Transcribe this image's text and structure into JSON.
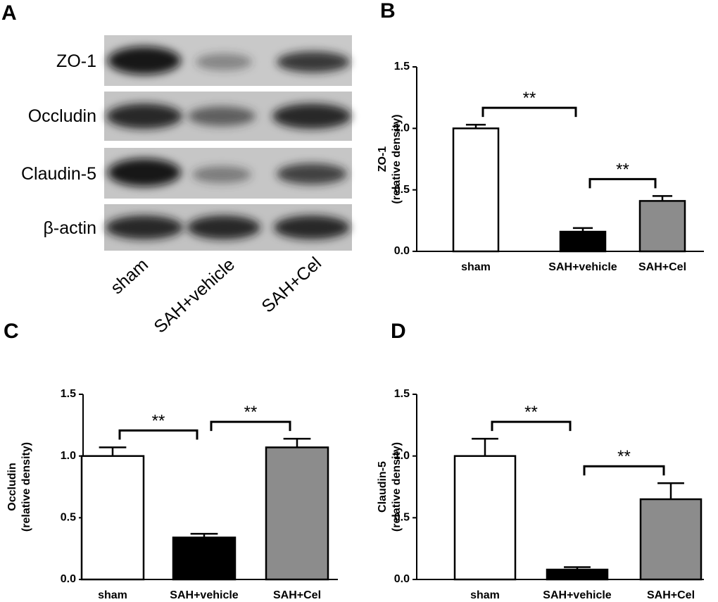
{
  "blot": {
    "panel": "A",
    "proteins": [
      "ZO-1",
      "Occludin",
      "Claudin-5",
      "β-actin"
    ],
    "groups": [
      "sham",
      "SAH+vehicle",
      "SAH+Cel"
    ]
  },
  "chart_data": [
    {
      "type": "bar",
      "panel": "B",
      "ylabel": [
        "ZO-1",
        "(relative density)"
      ],
      "categories": [
        "sham",
        "SAH+vehicle",
        "SAH+Cel"
      ],
      "values": [
        1.0,
        0.16,
        0.41
      ],
      "errors": [
        0.03,
        0.03,
        0.04
      ],
      "colors": [
        "#ffffff",
        "#000000",
        "#8c8c8c"
      ],
      "ylim": [
        0,
        1.5
      ],
      "yticks": [
        {
          "value": 0,
          "label": "0.0"
        },
        0.5,
        {
          "value": 1,
          "label": "1.0"
        },
        1.5
      ],
      "annotations": [
        {
          "text": "**",
          "groups": [
            "sham",
            "SAH+vehicle"
          ]
        },
        {
          "text": "**",
          "groups": [
            "SAH+vehicle",
            "SAH+Cel"
          ]
        }
      ]
    },
    {
      "type": "bar",
      "panel": "C",
      "ylabel": [
        "Occludin",
        "(relative density)"
      ],
      "categories": [
        "sham",
        "SAH+vehicle",
        "SAH+Cel"
      ],
      "values": [
        1.0,
        0.34,
        1.07
      ],
      "errors": [
        0.07,
        0.03,
        0.07
      ],
      "colors": [
        "#ffffff",
        "#000000",
        "#8c8c8c"
      ],
      "ylim": [
        0,
        1.5
      ],
      "yticks": [
        {
          "value": 0,
          "label": "0.0"
        },
        0.5,
        {
          "value": 1,
          "label": "1.0"
        },
        1.5
      ],
      "annotations": [
        {
          "text": "**",
          "groups": [
            "sham",
            "SAH+vehicle"
          ]
        },
        {
          "text": "**",
          "groups": [
            "SAH+vehicle",
            "SAH+Cel"
          ]
        }
      ]
    },
    {
      "type": "bar",
      "panel": "D",
      "ylabel": [
        "Claudin-5",
        "(relative density)"
      ],
      "categories": [
        "sham",
        "SAH+vehicle",
        "SAH+Cel"
      ],
      "values": [
        1.0,
        0.08,
        0.65
      ],
      "errors": [
        0.14,
        0.02,
        0.13
      ],
      "colors": [
        "#ffffff",
        "#000000",
        "#8c8c8c"
      ],
      "ylim": [
        0,
        1.5
      ],
      "yticks": [
        {
          "value": 0,
          "label": "0.0"
        },
        0.5,
        {
          "value": 1,
          "label": "1.0"
        },
        1.5
      ],
      "annotations": [
        {
          "text": "**",
          "groups": [
            "sham",
            "SAH+vehicle"
          ]
        },
        {
          "text": "**",
          "groups": [
            "SAH+vehicle",
            "SAH+Cel"
          ]
        }
      ]
    }
  ]
}
